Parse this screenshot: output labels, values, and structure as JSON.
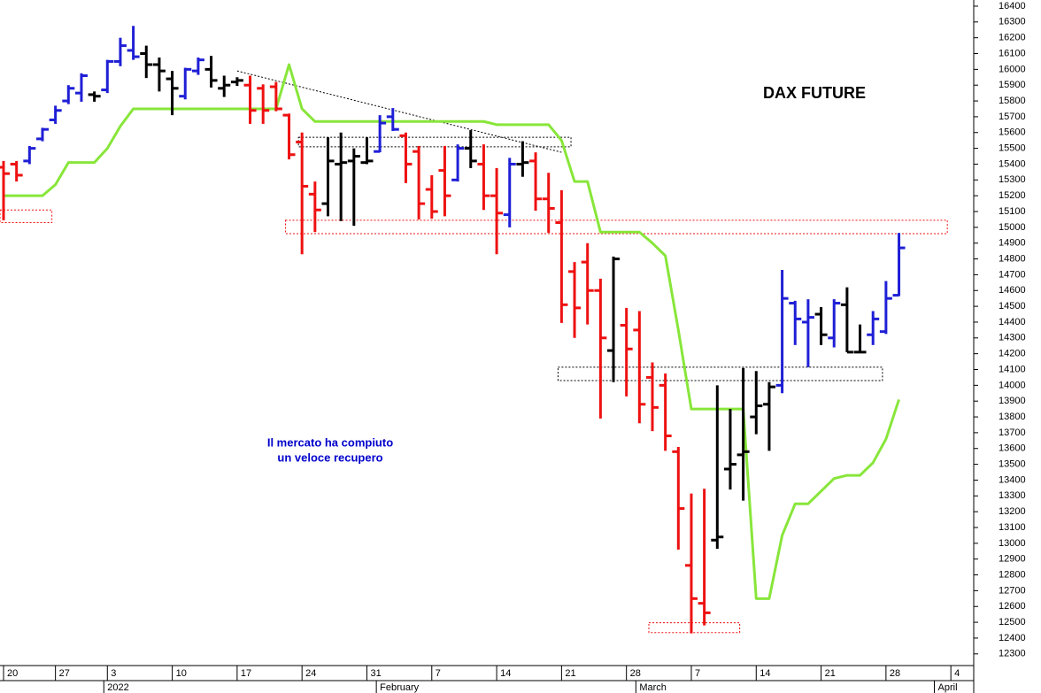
{
  "chart_data": {
    "type": "ohlc",
    "title": "DAX FUTURE",
    "annotation": [
      "Il mercato ha compiuto",
      "un veloce recupero"
    ],
    "annotation_color": "#0000cc",
    "categories": [
      "20",
      null,
      null,
      null,
      "27",
      null,
      null,
      null,
      "3",
      null,
      null,
      null,
      null,
      "10",
      null,
      null,
      null,
      null,
      "17",
      null,
      null,
      null,
      null,
      "24",
      null,
      null,
      null,
      null,
      "31",
      null,
      null,
      null,
      null,
      "7",
      null,
      null,
      null,
      null,
      "14",
      null,
      null,
      null,
      null,
      "21",
      null,
      null,
      null,
      null,
      "28",
      null,
      null,
      null,
      null,
      "7",
      null,
      null,
      null,
      null,
      "14",
      null,
      null,
      null,
      null,
      "21",
      null,
      null,
      null,
      null,
      "28",
      null,
      null,
      null,
      null,
      "4",
      null
    ],
    "period_labels": [
      {
        "label": "2022",
        "category_index": 8
      },
      {
        "label": "February",
        "category_index": 29
      },
      {
        "label": "March",
        "category_index": 49
      },
      {
        "label": "April",
        "category_index": 72
      }
    ],
    "bars": {
      "open": [
        15380,
        15400,
        15420,
        15560,
        15680,
        15800,
        15850,
        15840,
        15870,
        16050,
        16120,
        16100,
        16030,
        15940,
        15830,
        15990,
        16000,
        15880,
        15920,
        15900,
        15880,
        15890,
        15710,
        15540,
        15210,
        15150,
        15400,
        15420,
        15410,
        15480,
        15700,
        15580,
        15480,
        15240,
        15360,
        15300,
        15500,
        15400,
        15200,
        15080,
        15400,
        15420,
        15180,
        15030,
        14720,
        14780,
        14600,
        14220,
        14380,
        14350,
        14050,
        14000,
        13580,
        12860,
        12620,
        13020,
        13470,
        13560,
        13800,
        13880,
        14000,
        14520,
        14400,
        14450,
        14300,
        14510,
        14210,
        14320,
        14340,
        14570,
        null,
        null,
        null,
        null,
        null
      ],
      "high": [
        15420,
        15420,
        15515,
        15630,
        15770,
        15900,
        15975,
        15860,
        16060,
        16200,
        16275,
        16150,
        16075,
        15990,
        16010,
        16075,
        16085,
        15960,
        15950,
        15960,
        15905,
        15920,
        15720,
        15600,
        15290,
        15570,
        15600,
        15500,
        15570,
        15710,
        15755,
        15600,
        15515,
        15330,
        15515,
        15525,
        15615,
        15525,
        15375,
        15440,
        15545,
        15475,
        15345,
        15235,
        14780,
        14900,
        14675,
        14815,
        14490,
        14470,
        14145,
        14075,
        13610,
        13315,
        13345,
        14000,
        13850,
        14110,
        14090,
        14020,
        14730,
        14535,
        14545,
        14495,
        14545,
        14620,
        14385,
        14470,
        14660,
        14965,
        null,
        null,
        null,
        null,
        null
      ],
      "low": [
        15045,
        15290,
        15400,
        15545,
        15655,
        15780,
        15795,
        15795,
        15850,
        16020,
        16060,
        15945,
        15860,
        15710,
        15810,
        15965,
        15885,
        15825,
        15895,
        15655,
        15655,
        15735,
        15430,
        14830,
        14970,
        15070,
        15040,
        15010,
        15400,
        15475,
        15610,
        15280,
        15050,
        15055,
        15070,
        15290,
        15375,
        15110,
        14830,
        15000,
        15320,
        15105,
        14965,
        14395,
        14300,
        14385,
        13790,
        14020,
        13930,
        13760,
        13710,
        13585,
        12960,
        12430,
        12480,
        12965,
        13340,
        13270,
        13690,
        13585,
        13950,
        14255,
        14115,
        14255,
        14240,
        14210,
        14210,
        14255,
        14325,
        14565,
        null,
        null,
        null,
        null,
        null
      ],
      "close": [
        15340,
        15330,
        15500,
        15620,
        15740,
        15880,
        15960,
        15830,
        16050,
        16150,
        16080,
        16030,
        15990,
        15880,
        16000,
        16060,
        15930,
        15900,
        15930,
        15740,
        15740,
        15750,
        15460,
        15260,
        15110,
        15420,
        15410,
        15450,
        15420,
        15660,
        15620,
        15400,
        15150,
        15100,
        15200,
        15500,
        15420,
        15200,
        15090,
        15400,
        15410,
        15180,
        15120,
        14510,
        14490,
        14600,
        14300,
        14800,
        14230,
        13880,
        13860,
        13680,
        13220,
        12650,
        12560,
        13040,
        13500,
        13580,
        13870,
        13990,
        14550,
        14420,
        14430,
        14320,
        14520,
        14210,
        14210,
        14420,
        14550,
        14870,
        null,
        null,
        null,
        null,
        null
      ],
      "colors": [
        "#ee1111",
        "#ee1111",
        "#1f1fd6",
        "#1f1fd6",
        "#1f1fd6",
        "#1f1fd6",
        "#1f1fd6",
        "#000000",
        "#1f1fd6",
        "#1f1fd6",
        "#1f1fd6",
        "#000000",
        "#000000",
        "#000000",
        "#1f1fd6",
        "#1f1fd6",
        "#000000",
        "#000000",
        "#000000",
        "#ee1111",
        "#ee1111",
        "#ee1111",
        "#ee1111",
        "#ee1111",
        "#ee1111",
        "#000000",
        "#000000",
        "#000000",
        "#000000",
        "#1f1fd6",
        "#1f1fd6",
        "#ee1111",
        "#ee1111",
        "#ee1111",
        "#ee1111",
        "#1f1fd6",
        "#000000",
        "#ee1111",
        "#ee1111",
        "#1f1fd6",
        "#000000",
        "#ee1111",
        "#ee1111",
        "#ee1111",
        "#ee1111",
        "#ee1111",
        "#ee1111",
        "#000000",
        "#ee1111",
        "#ee1111",
        "#ee1111",
        "#ee1111",
        "#ee1111",
        "#ee1111",
        "#ee1111",
        "#000000",
        "#000000",
        "#000000",
        "#000000",
        "#000000",
        "#1f1fd6",
        "#1f1fd6",
        "#1f1fd6",
        "#000000",
        "#1f1fd6",
        "#000000",
        "#000000",
        "#1f1fd6",
        "#1f1fd6",
        "#1f1fd6",
        null,
        null,
        null,
        null,
        null
      ]
    },
    "line": {
      "color": "#88e63a",
      "values": [
        15200,
        15200,
        15200,
        15200,
        15270,
        15410,
        15410,
        15410,
        15500,
        15640,
        15750,
        15750,
        15750,
        15750,
        15750,
        15750,
        15750,
        15750,
        15750,
        15750,
        15750,
        15750,
        16030,
        15750,
        15670,
        15670,
        15670,
        15670,
        15670,
        15670,
        15670,
        15670,
        15670,
        15670,
        15670,
        15670,
        15670,
        15670,
        15650,
        15650,
        15650,
        15650,
        15650,
        15550,
        15290,
        15290,
        14970,
        14970,
        14970,
        14970,
        14900,
        14820,
        14350,
        13850,
        13850,
        13850,
        13850,
        13850,
        12650,
        12650,
        13050,
        13250,
        13250,
        13330,
        13410,
        13430,
        13430,
        13510,
        13660,
        13910,
        null,
        null,
        null,
        null,
        null
      ]
    },
    "zones": [
      {
        "from": 0,
        "to": 4,
        "low": 15030,
        "high": 15110,
        "color": "#ee1111"
      },
      {
        "from": 22,
        "to": 73,
        "low": 14960,
        "high": 15045,
        "color": "#ee1111"
      },
      {
        "from": 50,
        "to": 57,
        "low": 12435,
        "high": 12497,
        "color": "#ee1111"
      },
      {
        "from": 23,
        "to": 44,
        "low": 15510,
        "high": 15570,
        "color": "#000000"
      },
      {
        "from": 43,
        "to": 68,
        "low": 14030,
        "high": 14115,
        "color": "#000000"
      }
    ],
    "trendline": {
      "from": 18,
      "to": 43,
      "start": 15990,
      "end": 15475
    },
    "ylim": [
      12226,
      16439
    ],
    "yticks": [
      12300,
      12400,
      12500,
      12600,
      12700,
      12800,
      12900,
      13000,
      13100,
      13200,
      13300,
      13400,
      13500,
      13600,
      13700,
      13800,
      13900,
      14000,
      14100,
      14200,
      14300,
      14400,
      14500,
      14600,
      14700,
      14800,
      14900,
      15000,
      15100,
      15200,
      15300,
      15400,
      15500,
      15600,
      15700,
      15800,
      15900,
      16000,
      16100,
      16200,
      16300,
      16400
    ],
    "grid": false
  }
}
